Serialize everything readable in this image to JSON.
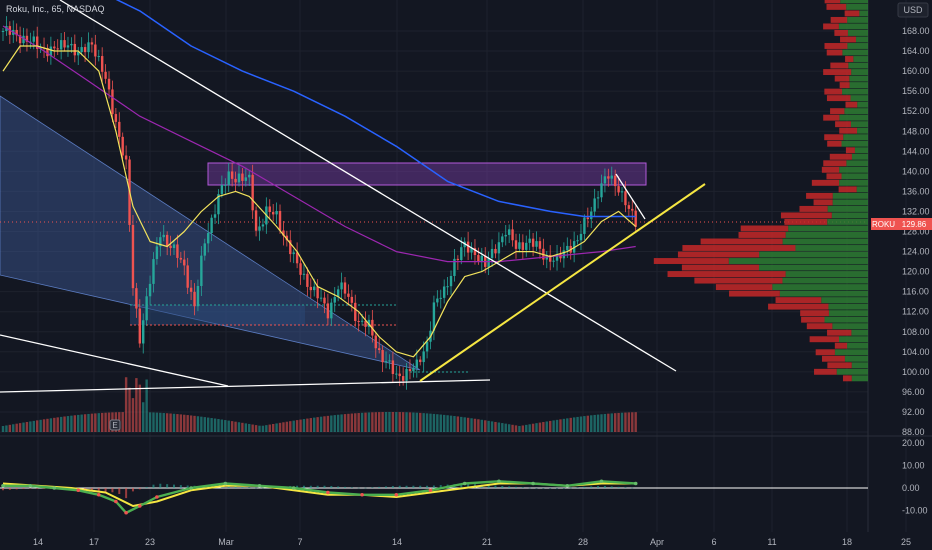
{
  "header": {
    "symbol": "Roku, Inc., 65, NASDAQ"
  },
  "currency_label": "USD",
  "price_tag": {
    "ticker": "ROKU",
    "price": "129.86"
  },
  "event_marker": "E",
  "colors": {
    "background": "#131722",
    "grid": "#1e222d",
    "up": "#26a69a",
    "down": "#ef5350",
    "sma_fast": "#f2e35c",
    "ma_slow": "#2962ff",
    "ma_mid": "#9c27b0",
    "trendline": "#ffffff",
    "support": "#f5e642",
    "zone": "#7b3fa8",
    "wedge": "#3d5a99",
    "vp_up": "#2e7d32",
    "vp_down": "#c62828"
  },
  "chart_data": [
    {
      "type": "candlestick",
      "title": "Roku, Inc., 65, NASDAQ",
      "ylim": [
        88,
        176
      ],
      "y_ticks": [
        "168.00",
        "164.00",
        "160.00",
        "156.00",
        "152.00",
        "148.00",
        "144.00",
        "140.00",
        "136.00",
        "132.00",
        "128.00",
        "124.00",
        "120.00",
        "116.00",
        "112.00",
        "108.00",
        "104.00",
        "100.00",
        "96.00",
        "92.00",
        "88.00"
      ],
      "x_ticks": [
        "14",
        "17",
        "23",
        "Mar",
        "7",
        "14",
        "21",
        "28",
        "Apr",
        "6",
        "11",
        "18",
        "25"
      ],
      "last_price": 129.86,
      "close_path": [
        {
          "x": 0,
          "y": 168
        },
        {
          "x": 5,
          "y": 167
        },
        {
          "x": 10,
          "y": 165
        },
        {
          "x": 15,
          "y": 164
        },
        {
          "x": 19,
          "y": 166
        },
        {
          "x": 22,
          "y": 163
        },
        {
          "x": 26,
          "y": 166
        },
        {
          "x": 30,
          "y": 158
        },
        {
          "x": 33,
          "y": 150
        },
        {
          "x": 36,
          "y": 141
        },
        {
          "x": 38,
          "y": 117
        },
        {
          "x": 40,
          "y": 107
        },
        {
          "x": 43,
          "y": 118
        },
        {
          "x": 46,
          "y": 128
        },
        {
          "x": 50,
          "y": 124
        },
        {
          "x": 53,
          "y": 121
        },
        {
          "x": 56,
          "y": 113
        },
        {
          "x": 59,
          "y": 126
        },
        {
          "x": 63,
          "y": 135
        },
        {
          "x": 66,
          "y": 139
        },
        {
          "x": 69,
          "y": 139
        },
        {
          "x": 72,
          "y": 138
        },
        {
          "x": 74,
          "y": 128
        },
        {
          "x": 77,
          "y": 132
        },
        {
          "x": 80,
          "y": 131
        },
        {
          "x": 83,
          "y": 126
        },
        {
          "x": 86,
          "y": 121
        },
        {
          "x": 89,
          "y": 118
        },
        {
          "x": 92,
          "y": 115
        },
        {
          "x": 95,
          "y": 112
        },
        {
          "x": 98,
          "y": 117
        },
        {
          "x": 101,
          "y": 115
        },
        {
          "x": 104,
          "y": 110
        },
        {
          "x": 107,
          "y": 109
        },
        {
          "x": 110,
          "y": 104
        },
        {
          "x": 113,
          "y": 101
        },
        {
          "x": 115,
          "y": 99
        },
        {
          "x": 118,
          "y": 100
        },
        {
          "x": 121,
          "y": 101
        },
        {
          "x": 124,
          "y": 106
        },
        {
          "x": 126,
          "y": 113
        },
        {
          "x": 129,
          "y": 116
        },
        {
          "x": 132,
          "y": 122
        },
        {
          "x": 135,
          "y": 125
        },
        {
          "x": 138,
          "y": 124
        },
        {
          "x": 141,
          "y": 121
        },
        {
          "x": 144,
          "y": 125
        },
        {
          "x": 147,
          "y": 128
        },
        {
          "x": 150,
          "y": 125
        },
        {
          "x": 153,
          "y": 126
        },
        {
          "x": 156,
          "y": 125
        },
        {
          "x": 159,
          "y": 123
        },
        {
          "x": 162,
          "y": 122
        },
        {
          "x": 165,
          "y": 125
        },
        {
          "x": 168,
          "y": 126
        },
        {
          "x": 171,
          "y": 131
        },
        {
          "x": 174,
          "y": 136
        },
        {
          "x": 177,
          "y": 139
        },
        {
          "x": 180,
          "y": 137
        },
        {
          "x": 183,
          "y": 132
        },
        {
          "x": 185,
          "y": 129.86
        }
      ],
      "sma_fast": [
        {
          "x": 0,
          "y": 160
        },
        {
          "x": 5,
          "y": 165
        },
        {
          "x": 10,
          "y": 165
        },
        {
          "x": 15,
          "y": 164
        },
        {
          "x": 22,
          "y": 164
        },
        {
          "x": 28,
          "y": 160
        },
        {
          "x": 33,
          "y": 148
        },
        {
          "x": 38,
          "y": 133
        },
        {
          "x": 43,
          "y": 126
        },
        {
          "x": 48,
          "y": 125
        },
        {
          "x": 53,
          "y": 128
        },
        {
          "x": 58,
          "y": 132
        },
        {
          "x": 63,
          "y": 135
        },
        {
          "x": 68,
          "y": 136
        },
        {
          "x": 72,
          "y": 135
        },
        {
          "x": 76,
          "y": 132
        },
        {
          "x": 80,
          "y": 129
        },
        {
          "x": 86,
          "y": 124
        },
        {
          "x": 92,
          "y": 117
        },
        {
          "x": 98,
          "y": 115
        },
        {
          "x": 104,
          "y": 112
        },
        {
          "x": 110,
          "y": 107
        },
        {
          "x": 115,
          "y": 104
        },
        {
          "x": 120,
          "y": 103
        },
        {
          "x": 125,
          "y": 107
        },
        {
          "x": 130,
          "y": 114
        },
        {
          "x": 135,
          "y": 119
        },
        {
          "x": 140,
          "y": 120
        },
        {
          "x": 145,
          "y": 122
        },
        {
          "x": 150,
          "y": 124
        },
        {
          "x": 155,
          "y": 124
        },
        {
          "x": 160,
          "y": 123
        },
        {
          "x": 165,
          "y": 124
        },
        {
          "x": 170,
          "y": 126
        },
        {
          "x": 175,
          "y": 130
        },
        {
          "x": 180,
          "y": 132
        },
        {
          "x": 185,
          "y": 129
        }
      ],
      "ma_slow": [
        {
          "x": 28,
          "y": 176
        },
        {
          "x": 40,
          "y": 172
        },
        {
          "x": 55,
          "y": 165
        },
        {
          "x": 70,
          "y": 160
        },
        {
          "x": 85,
          "y": 156
        },
        {
          "x": 100,
          "y": 151
        },
        {
          "x": 115,
          "y": 145
        },
        {
          "x": 130,
          "y": 138
        },
        {
          "x": 145,
          "y": 134
        },
        {
          "x": 160,
          "y": 132
        },
        {
          "x": 170,
          "y": 131
        },
        {
          "x": 178,
          "y": 131
        },
        {
          "x": 185,
          "y": 131
        }
      ],
      "ma_mid": [
        {
          "x": 0,
          "y": 169
        },
        {
          "x": 12,
          "y": 164
        },
        {
          "x": 25,
          "y": 158
        },
        {
          "x": 40,
          "y": 151
        },
        {
          "x": 55,
          "y": 146
        },
        {
          "x": 70,
          "y": 141
        },
        {
          "x": 85,
          "y": 135
        },
        {
          "x": 100,
          "y": 129
        },
        {
          "x": 115,
          "y": 124
        },
        {
          "x": 130,
          "y": 122
        },
        {
          "x": 145,
          "y": 122
        },
        {
          "x": 160,
          "y": 123
        },
        {
          "x": 175,
          "y": 124
        },
        {
          "x": 185,
          "y": 125
        }
      ]
    },
    {
      "type": "bar",
      "title": "Volume Profile",
      "price_range": [
        98,
        176
      ]
    },
    {
      "type": "line",
      "title": "Oscillator",
      "ylim": [
        -14,
        22
      ],
      "y_ticks": [
        "20.00",
        "10.00",
        "0.00",
        "-10.00"
      ],
      "macd": [
        {
          "x": 0,
          "y": 1
        },
        {
          "x": 8,
          "y": 1
        },
        {
          "x": 15,
          "y": 0
        },
        {
          "x": 22,
          "y": -1
        },
        {
          "x": 28,
          "y": -3
        },
        {
          "x": 33,
          "y": -6
        },
        {
          "x": 36,
          "y": -11
        },
        {
          "x": 40,
          "y": -8
        },
        {
          "x": 45,
          "y": -4
        },
        {
          "x": 55,
          "y": 0
        },
        {
          "x": 65,
          "y": 2
        },
        {
          "x": 75,
          "y": 1
        },
        {
          "x": 85,
          "y": 0
        },
        {
          "x": 95,
          "y": -2
        },
        {
          "x": 105,
          "y": -3
        },
        {
          "x": 115,
          "y": -3
        },
        {
          "x": 125,
          "y": -1
        },
        {
          "x": 135,
          "y": 2
        },
        {
          "x": 145,
          "y": 3
        },
        {
          "x": 155,
          "y": 2
        },
        {
          "x": 165,
          "y": 1
        },
        {
          "x": 175,
          "y": 3
        },
        {
          "x": 185,
          "y": 2
        }
      ],
      "signal": [
        {
          "x": 0,
          "y": 2
        },
        {
          "x": 10,
          "y": 1
        },
        {
          "x": 20,
          "y": 0
        },
        {
          "x": 30,
          "y": -2
        },
        {
          "x": 38,
          "y": -8
        },
        {
          "x": 45,
          "y": -6
        },
        {
          "x": 55,
          "y": -1
        },
        {
          "x": 65,
          "y": 1
        },
        {
          "x": 75,
          "y": 1
        },
        {
          "x": 85,
          "y": -1
        },
        {
          "x": 95,
          "y": -3
        },
        {
          "x": 105,
          "y": -3
        },
        {
          "x": 115,
          "y": -4
        },
        {
          "x": 125,
          "y": -2
        },
        {
          "x": 135,
          "y": 0
        },
        {
          "x": 145,
          "y": 2
        },
        {
          "x": 155,
          "y": 2
        },
        {
          "x": 165,
          "y": 1
        },
        {
          "x": 175,
          "y": 2
        },
        {
          "x": 185,
          "y": 2
        }
      ]
    }
  ]
}
